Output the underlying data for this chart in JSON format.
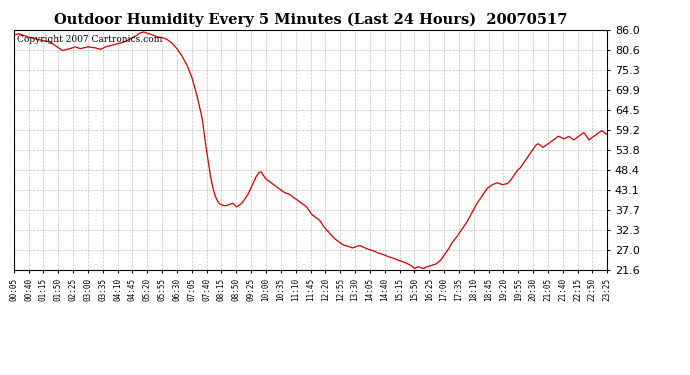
{
  "title": "Outdoor Humidity Every 5 Minutes (Last 24 Hours)  20070517",
  "copyright_text": "Copyright 2007 Cartronics.com",
  "line_color": "#cc0000",
  "background_color": "#ffffff",
  "grid_color": "#b0b0b0",
  "ylim": [
    21.6,
    86.0
  ],
  "yticks": [
    21.6,
    27.0,
    32.3,
    37.7,
    43.1,
    48.4,
    53.8,
    59.2,
    64.5,
    69.9,
    75.3,
    80.6,
    86.0
  ],
  "x_labels": [
    "00:05",
    "00:40",
    "01:15",
    "01:50",
    "02:25",
    "03:00",
    "03:35",
    "04:10",
    "04:45",
    "05:20",
    "05:55",
    "06:30",
    "07:05",
    "07:40",
    "08:15",
    "08:50",
    "09:25",
    "10:00",
    "10:35",
    "11:10",
    "11:45",
    "12:20",
    "12:55",
    "13:30",
    "14:05",
    "14:40",
    "15:15",
    "15:50",
    "16:25",
    "17:00",
    "17:35",
    "18:10",
    "18:45",
    "19:20",
    "19:55",
    "20:30",
    "21:05",
    "21:40",
    "22:15",
    "22:50",
    "23:25"
  ],
  "key_points_x": [
    0,
    0.3,
    0.6,
    1.0,
    1.5,
    2.0,
    2.3,
    2.5,
    2.7,
    3.0,
    3.3,
    3.5,
    3.7,
    4.0,
    4.3,
    4.5,
    4.7,
    4.9,
    5.0,
    5.1,
    5.2,
    5.3,
    5.4,
    5.5,
    5.6,
    5.7,
    5.9,
    6.1,
    6.3,
    6.5,
    6.7,
    6.9,
    7.1,
    7.3,
    7.5,
    7.6,
    7.7,
    7.8,
    7.9,
    8.0,
    8.1,
    8.2,
    8.3,
    8.4,
    8.5,
    8.6,
    8.7,
    8.75,
    8.8,
    8.85,
    8.9,
    8.95,
    9.0,
    9.05,
    9.1,
    9.15,
    9.2,
    9.3,
    9.4,
    9.5,
    9.6,
    9.7,
    9.75,
    9.8,
    9.85,
    9.9,
    10.0,
    10.1,
    10.2,
    10.3,
    10.4,
    10.5,
    10.6,
    10.7,
    10.8,
    10.9,
    11.0,
    11.1,
    11.2,
    11.3,
    11.4,
    11.5,
    11.55,
    11.6,
    11.65,
    11.7,
    11.75,
    11.8,
    11.9,
    12.0,
    12.1,
    12.2,
    12.3,
    12.5,
    12.7,
    12.9,
    13.0,
    13.1,
    13.2,
    13.3,
    13.4,
    13.5,
    13.6,
    13.7,
    13.8,
    13.9,
    14.0,
    14.1,
    14.2,
    14.3,
    14.4,
    14.5,
    14.6,
    14.7,
    14.8,
    14.9,
    15.0,
    15.1,
    15.2,
    15.3,
    15.4,
    15.5,
    15.6,
    15.65,
    15.7,
    15.75,
    15.8,
    15.85,
    15.9,
    15.95,
    16.0,
    16.05,
    16.1,
    16.15,
    16.2,
    16.25,
    16.3,
    16.4,
    16.5,
    16.6,
    16.7,
    16.8,
    16.9,
    17.0,
    17.1,
    17.2,
    17.3,
    17.5,
    17.7,
    17.9,
    18.1,
    18.3,
    18.5,
    18.7,
    18.9,
    19.1,
    19.3,
    19.5,
    19.6,
    19.7,
    19.8,
    19.9,
    20.0,
    20.1,
    20.2,
    20.3,
    20.4,
    20.5,
    20.6,
    20.7,
    20.8,
    20.9,
    21.0,
    21.1,
    21.2,
    21.3,
    21.4,
    21.5,
    21.6,
    21.7,
    21.8,
    21.9,
    22.0,
    22.1,
    22.2,
    22.3,
    22.4,
    22.5,
    22.6,
    22.7,
    22.8,
    22.9,
    23.0,
    23.1,
    23.2,
    23.3,
    23.4,
    23.45,
    23.5,
    23.6,
    23.7,
    23.8,
    23.9,
    24.0
  ],
  "key_points_y": [
    84.5,
    85.0,
    84.2,
    83.5,
    82.8,
    80.5,
    81.0,
    81.5,
    81.0,
    81.5,
    81.2,
    80.8,
    81.5,
    82.0,
    82.5,
    83.0,
    83.8,
    84.5,
    85.0,
    85.3,
    85.5,
    85.2,
    85.0,
    84.8,
    84.5,
    84.2,
    84.0,
    83.5,
    82.5,
    81.0,
    79.0,
    76.5,
    73.0,
    68.0,
    62.0,
    56.5,
    52.0,
    47.5,
    44.0,
    41.5,
    40.0,
    39.2,
    39.0,
    38.8,
    39.0,
    39.3,
    39.5,
    39.2,
    38.8,
    38.5,
    38.8,
    39.0,
    39.3,
    39.5,
    40.0,
    40.5,
    41.0,
    42.0,
    43.5,
    45.0,
    46.5,
    47.5,
    47.8,
    48.0,
    47.5,
    47.0,
    46.0,
    45.5,
    45.0,
    44.5,
    44.0,
    43.5,
    43.0,
    42.5,
    42.2,
    42.0,
    41.5,
    41.0,
    40.5,
    40.0,
    39.5,
    39.0,
    38.8,
    38.5,
    38.0,
    37.5,
    37.0,
    36.5,
    36.0,
    35.5,
    35.0,
    34.0,
    33.0,
    31.5,
    30.0,
    29.0,
    28.5,
    28.2,
    28.0,
    27.8,
    27.5,
    27.8,
    28.0,
    28.2,
    27.8,
    27.5,
    27.2,
    27.0,
    26.8,
    26.5,
    26.2,
    26.0,
    25.8,
    25.5,
    25.2,
    25.0,
    24.8,
    24.5,
    24.2,
    24.0,
    23.8,
    23.5,
    23.2,
    23.0,
    22.8,
    22.5,
    22.3,
    22.0,
    22.2,
    22.4,
    22.5,
    22.3,
    22.2,
    22.1,
    22.0,
    22.2,
    22.4,
    22.6,
    22.8,
    23.0,
    23.3,
    23.8,
    24.5,
    25.5,
    26.5,
    27.5,
    28.8,
    30.5,
    32.5,
    34.5,
    37.0,
    39.5,
    41.5,
    43.5,
    44.5,
    45.0,
    44.5,
    44.8,
    45.5,
    46.5,
    47.5,
    48.5,
    49.0,
    50.0,
    51.0,
    52.0,
    53.0,
    54.0,
    55.0,
    55.5,
    55.0,
    54.5,
    55.0,
    55.5,
    56.0,
    56.5,
    57.0,
    57.5,
    57.2,
    56.8,
    57.0,
    57.5,
    57.0,
    56.5,
    57.0,
    57.5,
    58.0,
    58.5,
    57.5,
    56.5,
    57.0,
    57.5,
    58.0,
    58.5,
    59.0,
    58.5,
    58.0,
    58.5,
    57.5,
    58.0,
    58.5,
    59.0,
    59.5,
    59.0
  ]
}
